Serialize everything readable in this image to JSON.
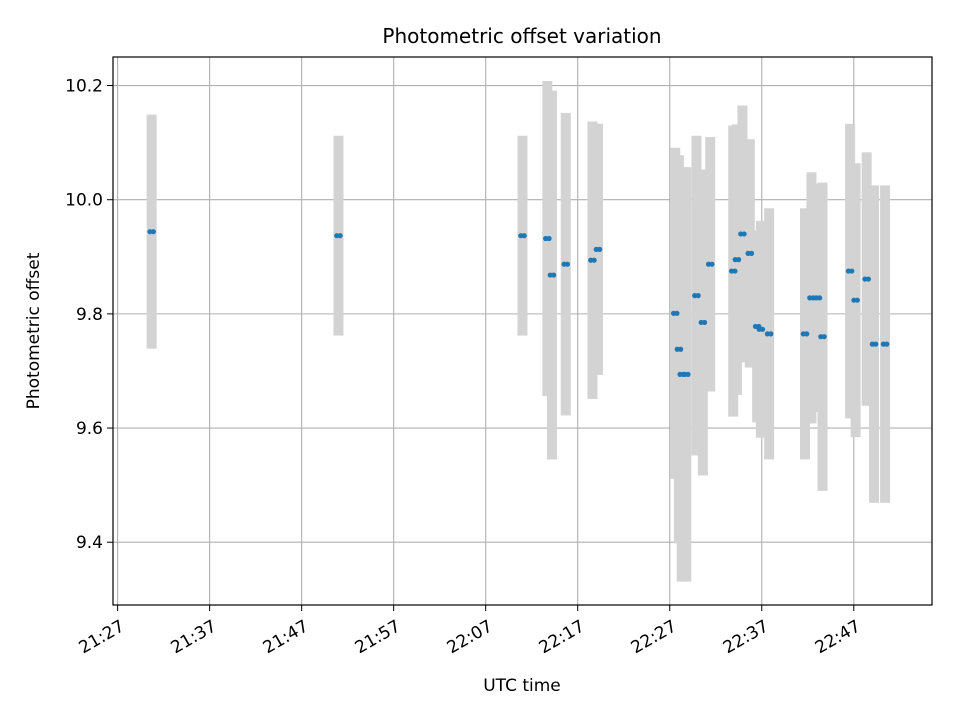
{
  "chart_data": {
    "type": "scatter",
    "title": "Photometric offset variation",
    "xlabel": "UTC time",
    "ylabel": "Photometric offset",
    "x_ticks": [
      "21:27",
      "21:37",
      "21:47",
      "21:57",
      "22:07",
      "22:17",
      "22:27",
      "22:37",
      "22:47"
    ],
    "y_ticks": [
      "9.4",
      "9.6",
      "9.8",
      "10.0",
      "10.2"
    ],
    "xlim": [
      "21:26.5",
      "22:55.5"
    ],
    "ylim": [
      9.29,
      10.25
    ],
    "grid": true,
    "point_color": "#1f77b4",
    "errorbar_color": "#d3d3d3",
    "series": [
      {
        "points": [
          {
            "t": "21:30.7",
            "y": 9.944,
            "err": 0.205
          },
          {
            "t": "21:51.0",
            "y": 9.937,
            "err": 0.175
          },
          {
            "t": "22:11.0",
            "y": 9.937,
            "err": 0.175
          },
          {
            "t": "22:13.7",
            "y": 9.932,
            "err": 0.276
          },
          {
            "t": "22:14.2",
            "y": 9.868,
            "err": 0.323
          },
          {
            "t": "22:15.7",
            "y": 9.887,
            "err": 0.265
          },
          {
            "t": "22:18.6",
            "y": 9.894,
            "err": 0.243
          },
          {
            "t": "22:19.2",
            "y": 9.913,
            "err": 0.22
          },
          {
            "t": "22:27.6",
            "y": 9.801,
            "err": 0.29
          },
          {
            "t": "22:28.0",
            "y": 9.738,
            "err": 0.34
          },
          {
            "t": "22:28.3",
            "y": 9.694,
            "err": 0.363
          },
          {
            "t": "22:28.8",
            "y": 9.694,
            "err": 0.363
          },
          {
            "t": "22:29.9",
            "y": 9.832,
            "err": 0.28
          },
          {
            "t": "22:30.6",
            "y": 9.785,
            "err": 0.268
          },
          {
            "t": "22:31.4",
            "y": 9.887,
            "err": 0.223
          },
          {
            "t": "22:33.9",
            "y": 9.875,
            "err": 0.255
          },
          {
            "t": "22:34.3",
            "y": 9.895,
            "err": 0.237
          },
          {
            "t": "22:34.9",
            "y": 9.94,
            "err": 0.225
          },
          {
            "t": "22:35.7",
            "y": 9.906,
            "err": 0.2
          },
          {
            "t": "22:36.5",
            "y": 9.778,
            "err": 0.168
          },
          {
            "t": "22:36.9",
            "y": 9.773,
            "err": 0.19
          },
          {
            "t": "22:37.8",
            "y": 9.765,
            "err": 0.22
          },
          {
            "t": "22:41.7",
            "y": 9.765,
            "err": 0.22
          },
          {
            "t": "22:42.4",
            "y": 9.828,
            "err": 0.22
          },
          {
            "t": "22:43.1",
            "y": 9.828,
            "err": 0.2
          },
          {
            "t": "22:43.6",
            "y": 9.76,
            "err": 0.27
          },
          {
            "t": "22:46.6",
            "y": 9.875,
            "err": 0.258
          },
          {
            "t": "22:47.2",
            "y": 9.824,
            "err": 0.24
          },
          {
            "t": "22:48.4",
            "y": 9.861,
            "err": 0.222
          },
          {
            "t": "22:49.2",
            "y": 9.747,
            "err": 0.278
          },
          {
            "t": "22:50.4",
            "y": 9.747,
            "err": 0.278
          }
        ]
      }
    ]
  }
}
